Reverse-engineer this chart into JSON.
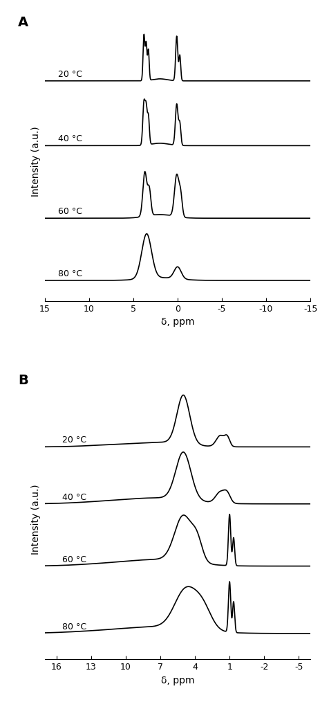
{
  "panel_A": {
    "label": "A",
    "xlabel": "δ, ppm",
    "ylabel": "Intensity (a.u.)",
    "xlim": [
      15,
      -15
    ],
    "xticks": [
      15,
      10,
      5,
      0,
      -5,
      -10,
      -15
    ],
    "temperatures": [
      "20 °C",
      "40 °C",
      "60 °C",
      "80 °C"
    ],
    "offsets": [
      0.85,
      0.6,
      0.32,
      0.08
    ],
    "baseline_scale": 0.18
  },
  "panel_B": {
    "label": "B",
    "xlabel": "δ, ppm",
    "ylabel": "Intensity (a.u.)",
    "xlim": [
      17,
      -6
    ],
    "xticks": [
      16,
      13,
      10,
      7,
      4,
      1,
      -2,
      -5
    ],
    "temperatures": [
      "20 °C",
      "40 °C",
      "60 °C",
      "80 °C"
    ],
    "offsets": [
      0.82,
      0.6,
      0.36,
      0.1
    ],
    "baseline_scale": 0.2
  },
  "line_color": "#000000",
  "line_width": 1.2,
  "background_color": "#ffffff",
  "tick_label_fontsize": 9,
  "axis_label_fontsize": 10,
  "panel_label_fontsize": 14
}
